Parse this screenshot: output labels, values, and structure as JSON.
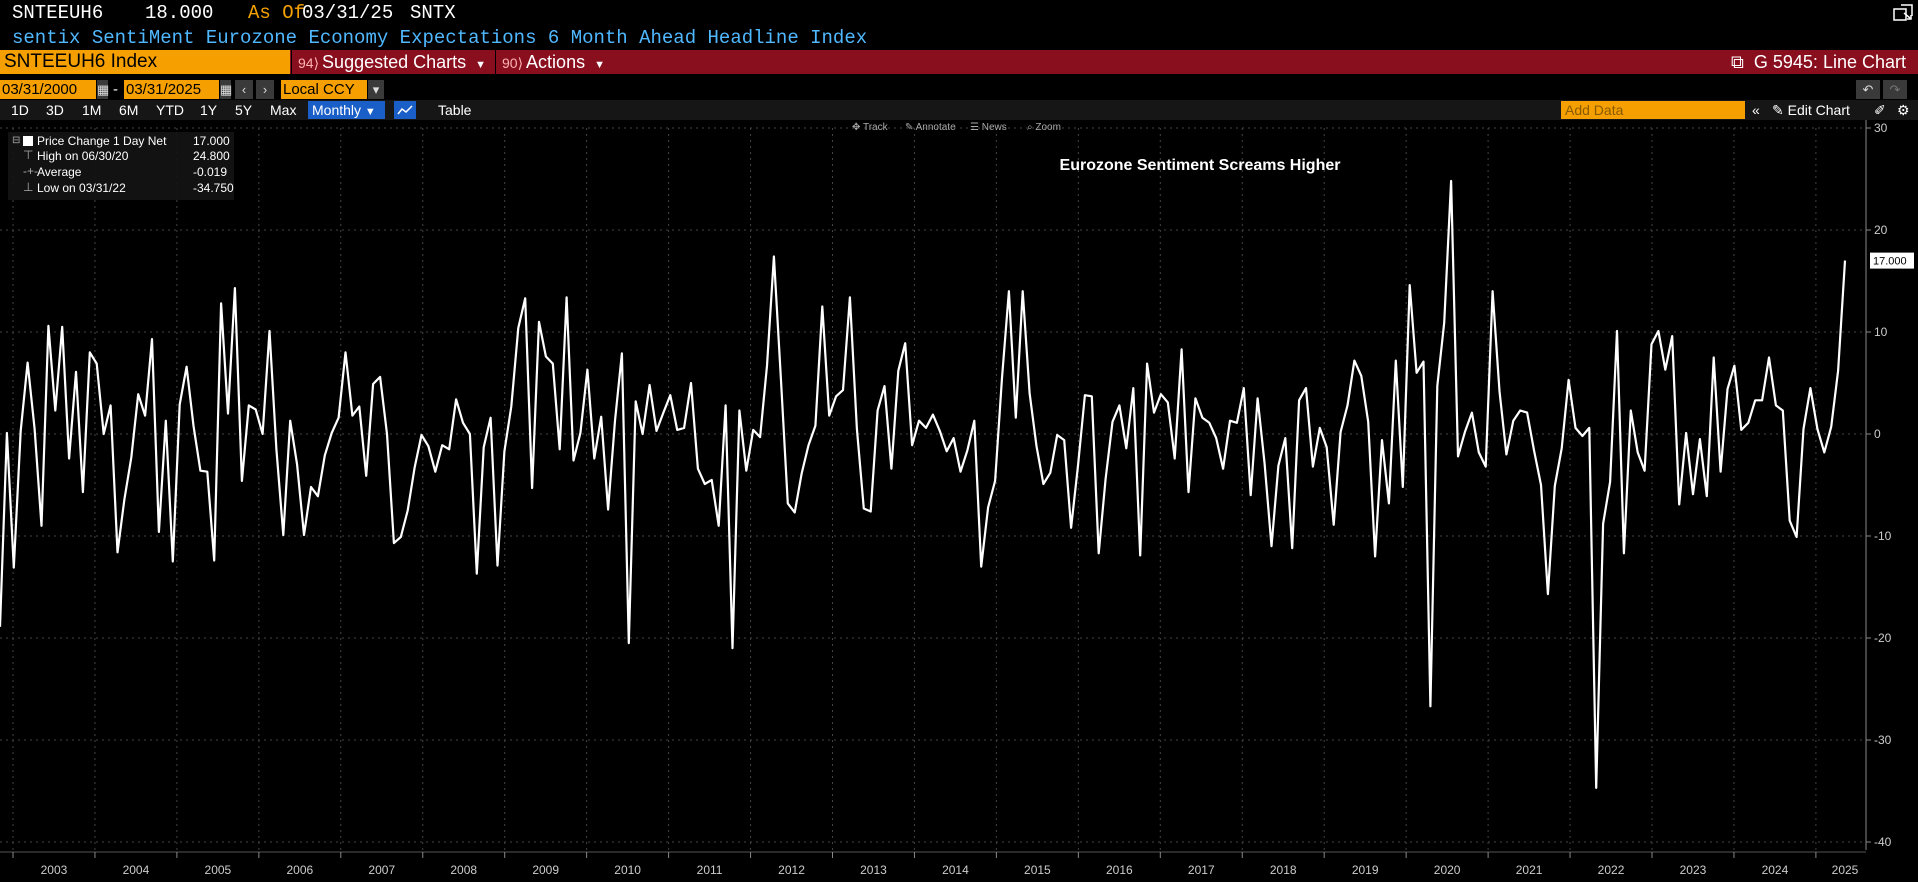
{
  "header": {
    "ticker": "SNTEEUH6",
    "last_value": "18.000",
    "as_of_label": "As Of",
    "as_of_date": "03/31/25",
    "source": "SNTX",
    "description": "sentix SentiMent Eurozone Economy Expectations 6 Month Ahead Headline Index"
  },
  "toolbar": {
    "security": "SNTEEUH6 Index",
    "suggested_charts": "Suggested Charts",
    "actions": "Actions",
    "chart_name": "G 5945: Line Chart"
  },
  "range": {
    "start_date": "03/31/2000",
    "end_date": "03/31/2025",
    "currency": "Local CCY"
  },
  "periods": {
    "buttons": [
      "1D",
      "3D",
      "1M",
      "6M",
      "YTD",
      "1Y",
      "5Y",
      "Max"
    ],
    "frequency": "Monthly",
    "table_label": "Table",
    "add_data_placeholder": "Add Data",
    "edit_chart": "Edit Chart"
  },
  "legend": {
    "series_label": "Price Change 1 Day Net",
    "series_value": "17.000",
    "high_label": "High on 06/30/20",
    "high_value": "24.800",
    "average_label": "Average",
    "average_value": "-0.019",
    "low_label": "Low on 03/31/22",
    "low_value": "-34.750"
  },
  "chart_tools": [
    "Track",
    "Annotate",
    "News",
    "Zoom"
  ],
  "colors": {
    "background": "#000000",
    "line": "#ffffff",
    "accent_orange": "#f5a000",
    "bar_red": "#8a0f1e",
    "header_blue": "#4fb8ff"
  },
  "chart_data": {
    "type": "line",
    "title": "Eurozone Sentiment Screams Higher",
    "ylim": [
      -40,
      30
    ],
    "y_ticks": [
      30,
      20,
      10,
      0,
      -10,
      -20,
      -30,
      -40
    ],
    "x_ticks": [
      "2003",
      "2004",
      "2005",
      "2006",
      "2007",
      "2008",
      "2009",
      "2010",
      "2011",
      "2012",
      "2013",
      "2014",
      "2015",
      "2016",
      "2017",
      "2018",
      "2019",
      "2020",
      "2021",
      "2022",
      "2023",
      "2024",
      "2025"
    ],
    "last_value_label": "17.000",
    "grid": true,
    "series": [
      {
        "values": [
          -18.9,
          0.1,
          -13.1,
          0.3,
          7.0,
          0.5,
          -9.0,
          10.6,
          2.3,
          10.5,
          -2.4,
          6.1,
          -5.7,
          8.0,
          6.9,
          0.0,
          2.8,
          -11.6,
          -6.4,
          -2.3,
          3.9,
          1.8,
          9.3,
          -9.6,
          1.3,
          -12.5,
          2.9,
          6.6,
          0.8,
          -3.6,
          -3.7,
          -12.4,
          12.8,
          2.0,
          14.3,
          -4.6,
          2.8,
          2.4,
          0.0,
          10.1,
          -1.5,
          -9.9,
          1.3,
          -3.0,
          -9.9,
          -5.2,
          -6.1,
          -2.1,
          0.1,
          1.6,
          8.0,
          1.8,
          2.7,
          -4.1,
          4.9,
          5.6,
          0.0,
          -10.7,
          -10.1,
          -7.5,
          -3.3,
          -0.1,
          -1.2,
          -3.7,
          -1.1,
          -1.5,
          3.4,
          1.1,
          0.0,
          -13.7,
          -1.3,
          1.6,
          -12.9,
          -1.7,
          2.7,
          10.4,
          13.3,
          -5.3,
          11.0,
          7.6,
          6.9,
          -1.5,
          13.4,
          -2.6,
          0.1,
          6.3,
          -2.4,
          1.7,
          -7.4,
          1.3,
          7.9,
          -20.5,
          3.2,
          0.0,
          4.8,
          0.3,
          2.1,
          3.8,
          0.4,
          0.6,
          5.0,
          -3.4,
          -4.9,
          -4.5,
          -9.0,
          2.8,
          -21.0,
          2.3,
          -3.6,
          0.4,
          -0.3,
          6.7,
          17.4,
          5.6,
          -6.8,
          -7.7,
          -3.9,
          -1.1,
          0.8,
          12.5,
          1.8,
          3.7,
          4.3,
          13.4,
          0.5,
          -7.3,
          -7.6,
          2.3,
          4.7,
          -3.4,
          6.2,
          8.9,
          -1.1,
          1.3,
          0.6,
          1.9,
          0.3,
          -1.7,
          -0.4,
          -3.7,
          -1.6,
          1.3,
          -13.0,
          -7.2,
          -4.6,
          5.5,
          14.0,
          1.6,
          14.0,
          4.0,
          -1.2,
          -4.9,
          -3.8,
          -0.1,
          -0.6,
          -9.2,
          -3.1,
          3.8,
          3.7,
          -11.7,
          -4.4,
          1.2,
          2.8,
          -1.4,
          4.5,
          -11.9,
          6.9,
          2.1,
          3.9,
          3.1,
          -2.4,
          8.3,
          -5.7,
          3.5,
          1.6,
          1.1,
          -0.4,
          -3.4,
          1.3,
          1.1,
          4.5,
          -6.0,
          3.5,
          -2.9,
          -11.0,
          -3.1,
          -0.4,
          -11.2,
          3.3,
          4.5,
          -3.2,
          0.6,
          -1.3,
          -8.9,
          0.2,
          2.8,
          7.2,
          5.7,
          1.2,
          -12.0,
          -0.6,
          -6.8,
          7.2,
          -5.2,
          14.6,
          6.0,
          7.1,
          -26.7,
          4.7,
          10.9,
          24.8,
          -2.2,
          0.2,
          2.1,
          -1.8,
          -3.2,
          14.0,
          4.2,
          -2.0,
          1.3,
          2.3,
          2.1,
          -1.6,
          -5.0,
          -15.7,
          -5.1,
          -1.4,
          5.3,
          0.6,
          -0.2,
          0.6,
          -34.7,
          -8.8,
          -4.7,
          10.1,
          -11.7,
          2.3,
          -1.8,
          -3.6,
          8.8,
          10.1,
          6.3,
          9.6,
          -6.9,
          0.1,
          -5.9,
          -0.5,
          -6.1,
          7.5,
          -3.7,
          4.4,
          6.7,
          0.4,
          1.1,
          3.3,
          3.3,
          7.5,
          2.8,
          2.3,
          -8.5,
          -10.1,
          0.5,
          4.5,
          0.5,
          -1.8,
          0.7,
          6.2,
          17.0
        ]
      }
    ]
  }
}
